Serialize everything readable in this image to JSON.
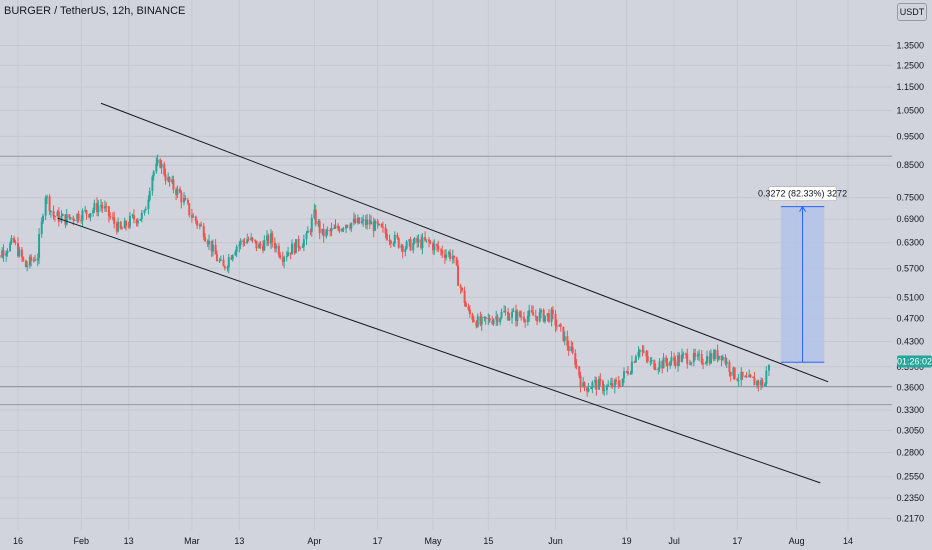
{
  "chart_data": {
    "type": "candlestick",
    "title": "BURGER / TetherUS, 12h, BINANCE",
    "currency": "USDT",
    "y_scale": "log",
    "ylim": [
      0.21,
      1.42
    ],
    "yticks": [
      "1.3500",
      "1.2500",
      "1.1500",
      "1.0500",
      "0.9500",
      "0.8500",
      "0.7500",
      "0.6900",
      "0.6300",
      "0.5700",
      "0.5100",
      "0.4700",
      "0.4300",
      "0.3900",
      "0.3600",
      "0.3300",
      "0.3050",
      "0.2800",
      "0.2550",
      "0.2350",
      "0.2170"
    ],
    "xticks": [
      {
        "date": "2023-01-16",
        "label": "16"
      },
      {
        "date": "2023-02-01",
        "label": "Feb"
      },
      {
        "date": "2023-02-13",
        "label": "13"
      },
      {
        "date": "2023-03-01",
        "label": "Mar"
      },
      {
        "date": "2023-03-13",
        "label": "13"
      },
      {
        "date": "2023-04-01",
        "label": "Apr"
      },
      {
        "date": "2023-04-17",
        "label": "17"
      },
      {
        "date": "2023-05-01",
        "label": "May"
      },
      {
        "date": "2023-05-15",
        "label": "15"
      },
      {
        "date": "2023-06-01",
        "label": "Jun"
      },
      {
        "date": "2023-06-19",
        "label": "19"
      },
      {
        "date": "2023-07-01",
        "label": "Jul"
      },
      {
        "date": "2023-07-17",
        "label": "17"
      },
      {
        "date": "2023-08-01",
        "label": "Aug"
      },
      {
        "date": "2023-08-14",
        "label": "14"
      }
    ],
    "x_domain": [
      "2023-01-09",
      "2023-08-31"
    ],
    "closes": [
      [
        "2023-01-09",
        0.57
      ],
      [
        "2023-01-12",
        0.61
      ],
      [
        "2023-01-15",
        0.63
      ],
      [
        "2023-01-18",
        0.575
      ],
      [
        "2023-01-21",
        0.6
      ],
      [
        "2023-01-23",
        0.76
      ],
      [
        "2023-01-25",
        0.7
      ],
      [
        "2023-01-28",
        0.69
      ],
      [
        "2023-01-31",
        0.7
      ],
      [
        "2023-02-03",
        0.71
      ],
      [
        "2023-02-06",
        0.73
      ],
      [
        "2023-02-08",
        0.7
      ],
      [
        "2023-02-11",
        0.66
      ],
      [
        "2023-02-14",
        0.69
      ],
      [
        "2023-02-17",
        0.7
      ],
      [
        "2023-02-19",
        0.82
      ],
      [
        "2023-02-21",
        0.86
      ],
      [
        "2023-02-23",
        0.8
      ],
      [
        "2023-02-26",
        0.76
      ],
      [
        "2023-03-01",
        0.7
      ],
      [
        "2023-03-04",
        0.66
      ],
      [
        "2023-03-07",
        0.6
      ],
      [
        "2023-03-09",
        0.57
      ],
      [
        "2023-03-12",
        0.62
      ],
      [
        "2023-03-15",
        0.64
      ],
      [
        "2023-03-18",
        0.62
      ],
      [
        "2023-03-21",
        0.64
      ],
      [
        "2023-03-24",
        0.6
      ],
      [
        "2023-03-27",
        0.62
      ],
      [
        "2023-03-30",
        0.64
      ],
      [
        "2023-04-01",
        0.7
      ],
      [
        "2023-04-03",
        0.65
      ],
      [
        "2023-04-06",
        0.66
      ],
      [
        "2023-04-09",
        0.68
      ],
      [
        "2023-04-12",
        0.68
      ],
      [
        "2023-04-15",
        0.68
      ],
      [
        "2023-04-18",
        0.66
      ],
      [
        "2023-04-21",
        0.64
      ],
      [
        "2023-04-24",
        0.62
      ],
      [
        "2023-04-27",
        0.63
      ],
      [
        "2023-04-30",
        0.63
      ],
      [
        "2023-05-03",
        0.61
      ],
      [
        "2023-05-06",
        0.6
      ],
      [
        "2023-05-08",
        0.53
      ],
      [
        "2023-05-10",
        0.48
      ],
      [
        "2023-05-13",
        0.46
      ],
      [
        "2023-05-16",
        0.47
      ],
      [
        "2023-05-19",
        0.48
      ],
      [
        "2023-05-22",
        0.475
      ],
      [
        "2023-05-25",
        0.475
      ],
      [
        "2023-05-28",
        0.475
      ],
      [
        "2023-05-31",
        0.475
      ],
      [
        "2023-06-03",
        0.44
      ],
      [
        "2023-06-06",
        0.4
      ],
      [
        "2023-06-08",
        0.36
      ],
      [
        "2023-06-11",
        0.365
      ],
      [
        "2023-06-14",
        0.36
      ],
      [
        "2023-06-17",
        0.365
      ],
      [
        "2023-06-20",
        0.39
      ],
      [
        "2023-06-22",
        0.42
      ],
      [
        "2023-06-25",
        0.395
      ],
      [
        "2023-06-28",
        0.395
      ],
      [
        "2023-07-01",
        0.4
      ],
      [
        "2023-07-04",
        0.405
      ],
      [
        "2023-07-07",
        0.4
      ],
      [
        "2023-07-10",
        0.405
      ],
      [
        "2023-07-13",
        0.41
      ],
      [
        "2023-07-16",
        0.38
      ],
      [
        "2023-07-19",
        0.37
      ],
      [
        "2023-07-22",
        0.368
      ],
      [
        "2023-07-24",
        0.365
      ],
      [
        "2023-07-25",
        0.398
      ]
    ],
    "current_price_time": "01:26:02",
    "channel": {
      "upper": [
        [
          "2023-02-06",
          1.08
        ],
        [
          "2023-08-09",
          0.368
        ]
      ],
      "lower": [
        [
          "2023-01-26",
          0.693
        ],
        [
          "2023-08-07",
          0.249
        ]
      ]
    },
    "measure": {
      "label": "0.3272 (82.33%) 3272",
      "from_price": 0.397,
      "to_price": 0.7242,
      "start_date": "2023-07-28",
      "end_date": "2023-08-08"
    },
    "horizontal_lines": [
      0.88,
      0.3614,
      0.337
    ],
    "colors": {
      "up": "#26a69a",
      "down": "#ef5350",
      "measure_fill": "#b3c3e8",
      "measure_line": "#2962ff",
      "channel": "#131722",
      "price_badge": "#26a69a"
    }
  }
}
